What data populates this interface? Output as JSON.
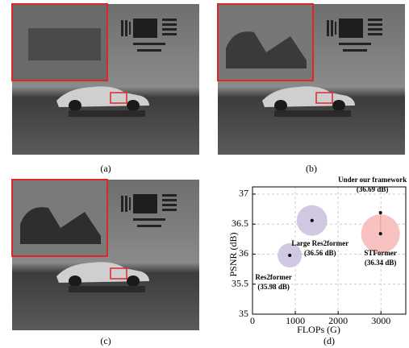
{
  "panels": [
    {
      "caption": "(a)"
    },
    {
      "caption": "(b)"
    },
    {
      "caption": "(c)"
    },
    {
      "caption": "(d)"
    }
  ],
  "chart_data": {
    "type": "bubble",
    "x_label": "FLOPs (G)",
    "y_label": "PSNR (dB)",
    "labels": [
      "Res2former",
      "Large Res2former",
      "STFormer",
      "Under our framework"
    ],
    "x": [
      870,
      1390,
      2990,
      2990
    ],
    "y": [
      35.98,
      36.56,
      36.34,
      36.69
    ],
    "value_labels": [
      "(35.98 dB)",
      "(36.56 dB)",
      "(36.34 dB)",
      "(36.69 dB)"
    ],
    "sizes": [
      15,
      19,
      24,
      null
    ],
    "colors": [
      "#c9bfdc",
      "#c9bfdc",
      "#f6b7b4",
      "#000000"
    ],
    "xlim": [
      0,
      3580
    ],
    "ylim": [
      35,
      37.12
    ],
    "xticks": [
      0,
      1000,
      2000,
      3000
    ],
    "yticks": [
      35,
      35.5,
      36,
      36.5,
      37
    ],
    "grid": true
  }
}
